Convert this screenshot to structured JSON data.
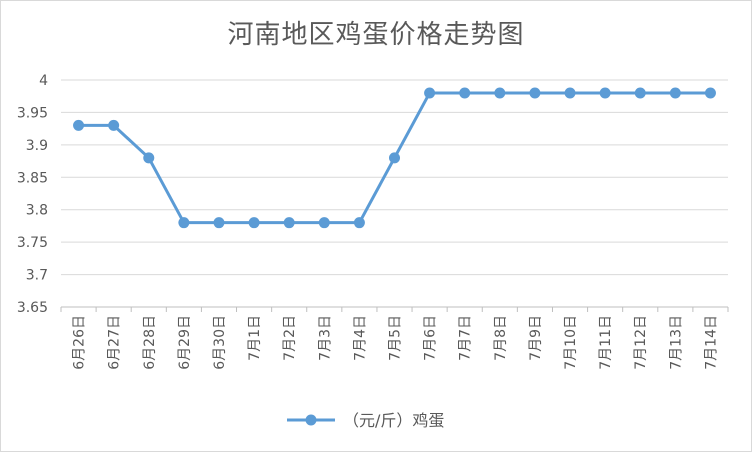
{
  "chart_data": {
    "type": "line",
    "title": "河南地区鸡蛋价格走势图",
    "xlabel": "",
    "ylabel": "",
    "categories": [
      "6月26日",
      "6月27日",
      "6月28日",
      "6月29日",
      "6月30日",
      "7月1日",
      "7月2日",
      "7月3日",
      "7月4日",
      "7月5日",
      "7月6日",
      "7月7日",
      "7月8日",
      "7月9日",
      "7月10日",
      "7月11日",
      "7月12日",
      "7月13日",
      "7月14日"
    ],
    "series": [
      {
        "name": "（元/斤）鸡蛋",
        "values": [
          3.93,
          3.93,
          3.88,
          3.78,
          3.78,
          3.78,
          3.78,
          3.78,
          3.78,
          3.88,
          3.98,
          3.98,
          3.98,
          3.98,
          3.98,
          3.98,
          3.98,
          3.98,
          3.98
        ]
      }
    ],
    "ylim": [
      3.65,
      4
    ],
    "yticks": [
      3.65,
      3.7,
      3.75,
      3.8,
      3.85,
      3.9,
      3.95,
      4
    ],
    "grid": true,
    "legend_position": "bottom",
    "line_color": "#5b9bd5"
  }
}
